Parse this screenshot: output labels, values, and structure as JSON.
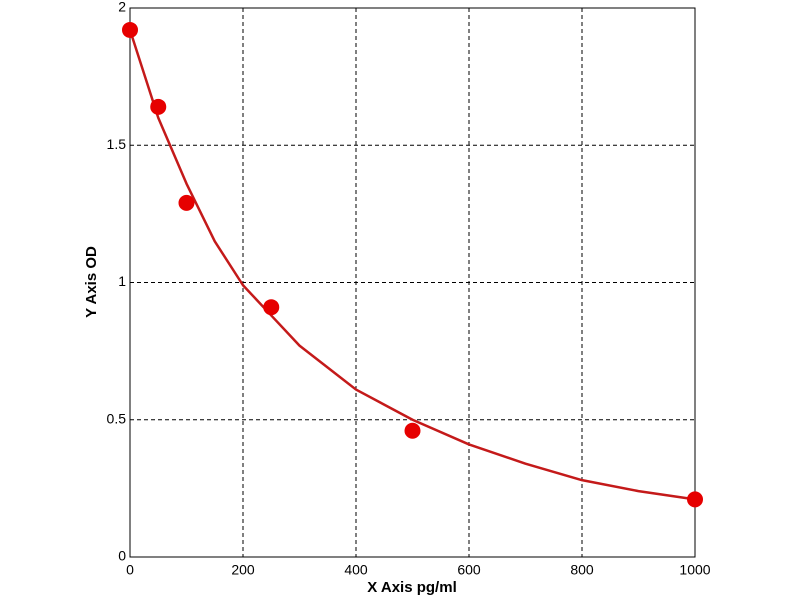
{
  "chart_data": {
    "type": "scatter",
    "x_label": "X Axis pg/ml",
    "y_label": "Y Axis OD",
    "xlim": [
      0,
      1000
    ],
    "xticks": [
      0,
      200,
      400,
      600,
      800,
      1000
    ],
    "ylim": [
      0,
      2
    ],
    "yticks": [
      0,
      0.5,
      1,
      1.5,
      2
    ],
    "grid": true,
    "series": [
      {
        "type": "line",
        "color": "#c41a1a",
        "x": [
          0,
          50,
          100,
          150,
          200,
          250,
          300,
          400,
          500,
          600,
          700,
          800,
          900,
          1000
        ],
        "values": [
          1.92,
          1.6,
          1.36,
          1.15,
          0.99,
          0.88,
          0.77,
          0.61,
          0.5,
          0.41,
          0.34,
          0.28,
          0.24,
          0.21
        ]
      },
      {
        "type": "scatter",
        "color": "#e60000",
        "x": [
          0,
          50,
          100,
          250,
          500,
          1000
        ],
        "values": [
          1.92,
          1.64,
          1.29,
          0.91,
          0.46,
          0.21
        ]
      }
    ]
  }
}
